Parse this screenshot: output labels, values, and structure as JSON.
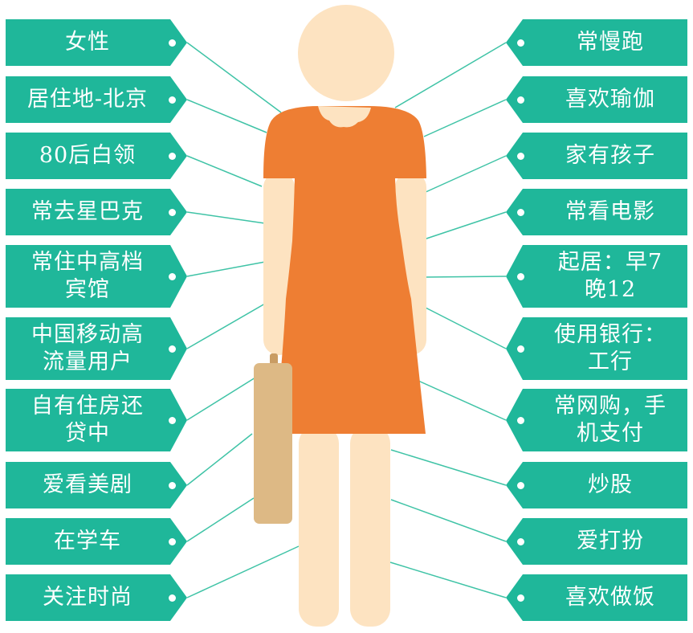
{
  "colors": {
    "tag": "#1fb79a",
    "line": "#3fc3a6",
    "dress": "#ee7e33",
    "skin": "#fde3c1",
    "bag": "#ddb985",
    "bag_handle": "#c99c63"
  },
  "icons": {
    "figure": "woman-figure",
    "bag": "handbag-icon",
    "tag_hole": "tag-hole-icon"
  },
  "left_tags": [
    {
      "label": "女性"
    },
    {
      "label": "居住地-北京"
    },
    {
      "label": "80后白领"
    },
    {
      "label": "常去星巴克"
    },
    {
      "label": "常住中高档\n宾馆"
    },
    {
      "label": "中国移动高\n流量用户"
    },
    {
      "label": "自有住房还\n贷中"
    },
    {
      "label": "爱看美剧"
    },
    {
      "label": "在学车"
    },
    {
      "label": "关注时尚"
    }
  ],
  "right_tags": [
    {
      "label": "常慢跑"
    },
    {
      "label": "喜欢瑜伽"
    },
    {
      "label": "家有孩子"
    },
    {
      "label": "常看电影"
    },
    {
      "label": "起居：早7\n晚12"
    },
    {
      "label": "使用银行：\n工行"
    },
    {
      "label": "常网购，手\n机支付"
    },
    {
      "label": "炒股"
    },
    {
      "label": "爱打扮"
    },
    {
      "label": "喜欢做饭"
    }
  ]
}
